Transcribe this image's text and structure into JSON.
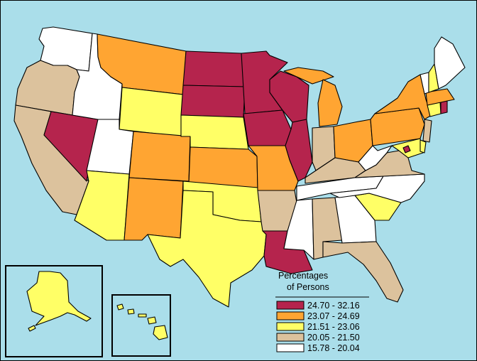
{
  "colors": {
    "ocean": "#aadeea",
    "c1": "#b5244d",
    "c2": "#ffa532",
    "c3": "#ffff66",
    "c4": "#dcc29d",
    "c5": "#ffffff"
  },
  "legend": {
    "title_line1": "Percentages",
    "title_line2": "of Persons",
    "classes": [
      {
        "label": "24.70 - 32.16",
        "color": "#b5244d"
      },
      {
        "label": "23.07 - 24.69",
        "color": "#ffa532"
      },
      {
        "label": "21.51 - 23.06",
        "color": "#ffff66"
      },
      {
        "label": "20.05 - 21.50",
        "color": "#dcc29d"
      },
      {
        "label": "15.78 - 20.04",
        "color": "#ffffff"
      }
    ]
  },
  "state_classes": {
    "WA": 5,
    "OR": 4,
    "CA": 4,
    "NV": 1,
    "ID": 5,
    "MT": 2,
    "WY": 3,
    "UT": 5,
    "AZ": 3,
    "CO": 2,
    "NM": 2,
    "ND": 1,
    "SD": 1,
    "NE": 3,
    "KS": 2,
    "OK": 3,
    "TX": 3,
    "MN": 1,
    "IA": 1,
    "MO": 2,
    "AR": 4,
    "LA": 1,
    "WI": 1,
    "IL": 1,
    "MI": 2,
    "IN": 4,
    "OH": 2,
    "KY": 4,
    "TN": 5,
    "MS": 5,
    "AL": 4,
    "GA": 5,
    "FL": 4,
    "SC": 3,
    "NC": 5,
    "VA": 4,
    "WV": 5,
    "MD": 3,
    "DE": 3,
    "DC": 1,
    "PA": 2,
    "NJ": 4,
    "NY": 2,
    "CT": 3,
    "RI": 1,
    "MA": 2,
    "VT": 5,
    "NH": 3,
    "ME": 5,
    "AK": 3,
    "HI": 3
  }
}
